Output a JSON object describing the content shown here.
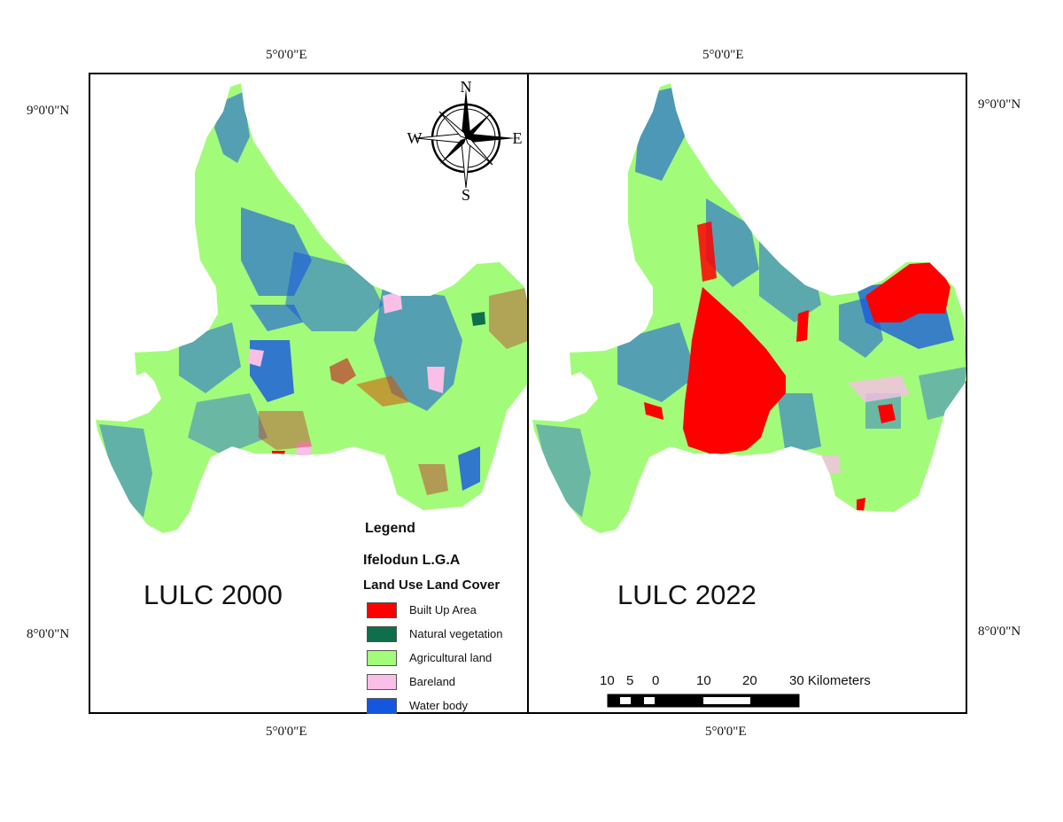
{
  "coordinates": {
    "top_lon_left": "5°0'0\"E",
    "top_lon_right": "5°0'0\"E",
    "bottom_lon_left": "5°0'0\"E",
    "bottom_lon_right": "5°0'0\"E",
    "lat_top_left": "9°0'0\"N",
    "lat_bottom_left": "8°0'0\"N",
    "lat_top_right": "9°0'0\"N",
    "lat_bottom_right": "8°0'0\"N"
  },
  "maps": {
    "left_title": "LULC 2000",
    "right_title": "LULC 2022"
  },
  "north_arrow": {
    "n": "N",
    "s": "S",
    "e": "E",
    "w": "W"
  },
  "legend": {
    "title": "Legend",
    "area": "Ifelodun L.G.A",
    "category": "Land Use Land Cover",
    "items": [
      {
        "label": "Built Up Area",
        "color": "#ff0000"
      },
      {
        "label": "Natural vegetation",
        "color": "#0f6e4b"
      },
      {
        "label": "Agricultural land",
        "color": "#a3fb7a"
      },
      {
        "label": "Bareland",
        "color": "#f9bfe8"
      },
      {
        "label": "Water body",
        "color": "#1456e0"
      }
    ]
  },
  "scale_bar": {
    "ticks": [
      "10",
      "5",
      "0",
      "10",
      "20",
      "30 Kilometers"
    ]
  },
  "colors": {
    "agricultural": "#a3fb7a",
    "water": "#1456e0",
    "builtup": "#ff0000",
    "bareland": "#f9bfe8",
    "vegetation": "#0f6e4b",
    "frame": "#000000"
  }
}
